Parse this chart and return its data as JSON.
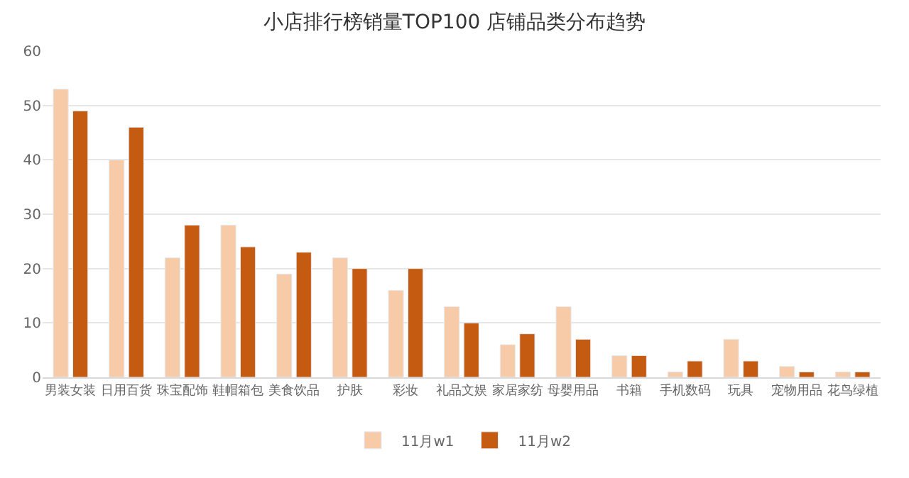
{
  "chart_data": {
    "type": "bar",
    "title": "小店排行榜销量TOP100 店铺品类分布趋势",
    "categories": [
      "男装女装",
      "日用百货",
      "珠宝配饰",
      "鞋帽箱包",
      "美食饮品",
      "护肤",
      "彩妆",
      "礼品文娱",
      "家居家纺",
      "母婴用品",
      "书籍",
      "手机数码",
      "玩具",
      "宠物用品",
      "花鸟绿植"
    ],
    "series": [
      {
        "name": "11月w1",
        "color": "#f8cba8",
        "values": [
          53,
          40,
          22,
          28,
          19,
          22,
          16,
          13,
          6,
          13,
          4,
          1,
          7,
          2,
          1
        ]
      },
      {
        "name": "11月w2",
        "color": "#c55a11",
        "values": [
          49,
          46,
          28,
          24,
          23,
          20,
          20,
          10,
          8,
          7,
          4,
          3,
          3,
          1,
          1
        ]
      }
    ],
    "ylim": [
      0,
      60
    ],
    "yticks": [
      0,
      10,
      20,
      30,
      40,
      50,
      60
    ],
    "grid": "y",
    "legend": "bottom"
  }
}
